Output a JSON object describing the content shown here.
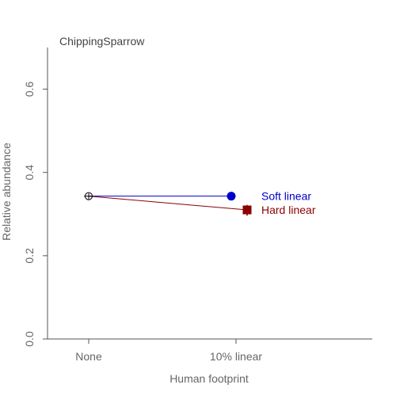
{
  "chart_data": {
    "type": "line",
    "title": "ChippingSparrow",
    "xlabel": "Human footprint",
    "ylabel": "Relative abundance",
    "categories": [
      "None",
      "10% linear"
    ],
    "ylim": [
      0,
      0.7
    ],
    "yticks": [
      "0.0",
      "0.2",
      "0.4",
      "0.6"
    ],
    "yticks_values": [
      0.0,
      0.2,
      0.4,
      0.6
    ],
    "grid": false,
    "baseline": {
      "category": "None",
      "value": 0.343,
      "ci": [
        0.336,
        0.35
      ]
    },
    "series": [
      {
        "name": "Soft linear",
        "color": "#0000cc",
        "marker": "circle",
        "values": [
          0.343,
          0.343
        ],
        "ci": [
          0.337,
          0.349
        ]
      },
      {
        "name": "Hard linear",
        "color": "#8b0000",
        "marker": "square",
        "values": [
          0.343,
          0.31
        ],
        "ci": [
          0.296,
          0.322
        ]
      }
    ]
  }
}
